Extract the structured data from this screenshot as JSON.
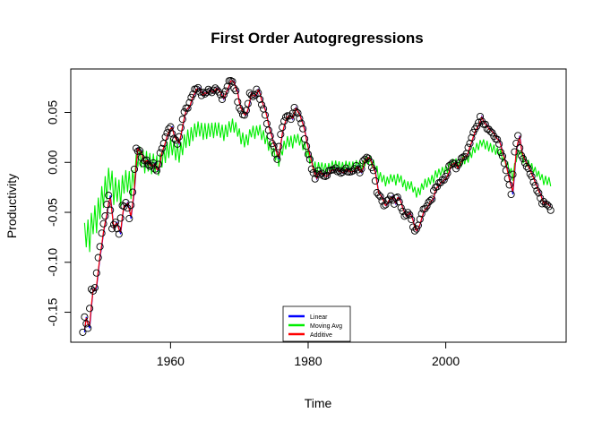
{
  "chart_data": {
    "type": "line",
    "title": "First Order Autogregressions",
    "xlabel": "Time",
    "ylabel": "Productivity",
    "xlim": [
      1945.5,
      2017.5
    ],
    "ylim": [
      -0.18,
      0.0935
    ],
    "x_ticks": [
      1960,
      1980,
      2000
    ],
    "y_ticks": [
      -0.15,
      -0.1,
      -0.05,
      0.0,
      0.05
    ],
    "y_tick_labels": [
      "-0.15",
      "-0.10",
      "-0.05",
      "0.00",
      "0.05"
    ],
    "grid": false,
    "legend_position": "bottom-center",
    "legend": [
      {
        "name": "Linear",
        "color": "#0000ff"
      },
      {
        "name": "Moving Avg",
        "color": "#00ee00"
      },
      {
        "name": "Additive",
        "color": "#ff0000"
      }
    ],
    "observed": {
      "marker": "open-circle",
      "start": 1947.25,
      "frequency": 4,
      "anchors": [
        [
          1947.25,
          -0.17
        ],
        [
          1947.5,
          -0.155
        ],
        [
          1948.0,
          -0.165
        ],
        [
          1948.5,
          -0.127
        ],
        [
          1949.0,
          -0.127
        ],
        [
          1949.5,
          -0.095
        ],
        [
          1950.0,
          -0.072
        ],
        [
          1950.5,
          -0.052
        ],
        [
          1951.0,
          -0.032
        ],
        [
          1951.5,
          -0.065
        ],
        [
          1952.0,
          -0.06
        ],
        [
          1952.5,
          -0.07
        ],
        [
          1953.0,
          -0.045
        ],
        [
          1953.5,
          -0.04
        ],
        [
          1954.0,
          -0.055
        ],
        [
          1954.5,
          -0.03
        ],
        [
          1955.0,
          0.015
        ],
        [
          1955.5,
          0.01
        ],
        [
          1956.0,
          0.0
        ],
        [
          1956.5,
          0.003
        ],
        [
          1957.0,
          -0.005
        ],
        [
          1957.5,
          0.0
        ],
        [
          1958.0,
          -0.01
        ],
        [
          1958.5,
          0.008
        ],
        [
          1959.0,
          0.02
        ],
        [
          1959.5,
          0.03
        ],
        [
          1960.0,
          0.035
        ],
        [
          1960.5,
          0.025
        ],
        [
          1961.0,
          0.02
        ],
        [
          1961.5,
          0.035
        ],
        [
          1962.0,
          0.05
        ],
        [
          1962.5,
          0.055
        ],
        [
          1963.0,
          0.065
        ],
        [
          1963.5,
          0.072
        ],
        [
          1964.0,
          0.075
        ],
        [
          1964.5,
          0.068
        ],
        [
          1965.0,
          0.07
        ],
        [
          1965.5,
          0.072
        ],
        [
          1966.0,
          0.068
        ],
        [
          1966.5,
          0.073
        ],
        [
          1967.0,
          0.07
        ],
        [
          1967.5,
          0.065
        ],
        [
          1968.0,
          0.072
        ],
        [
          1968.5,
          0.082
        ],
        [
          1969.0,
          0.08
        ],
        [
          1969.5,
          0.07
        ],
        [
          1970.0,
          0.055
        ],
        [
          1970.5,
          0.048
        ],
        [
          1971.0,
          0.05
        ],
        [
          1971.5,
          0.068
        ],
        [
          1972.0,
          0.066
        ],
        [
          1972.5,
          0.072
        ],
        [
          1973.0,
          0.064
        ],
        [
          1973.5,
          0.055
        ],
        [
          1974.0,
          0.038
        ],
        [
          1974.5,
          0.025
        ],
        [
          1975.0,
          0.015
        ],
        [
          1975.5,
          0.005
        ],
        [
          1976.0,
          0.03
        ],
        [
          1976.5,
          0.04
        ],
        [
          1977.0,
          0.048
        ],
        [
          1977.5,
          0.045
        ],
        [
          1978.0,
          0.055
        ],
        [
          1978.5,
          0.05
        ],
        [
          1979.0,
          0.04
        ],
        [
          1979.5,
          0.025
        ],
        [
          1980.0,
          0.01
        ],
        [
          1980.5,
          -0.005
        ],
        [
          1981.0,
          -0.015
        ],
        [
          1981.5,
          -0.008
        ],
        [
          1982.0,
          -0.012
        ],
        [
          1982.5,
          -0.015
        ],
        [
          1983.0,
          -0.01
        ],
        [
          1983.5,
          -0.008
        ],
        [
          1984.0,
          -0.005
        ],
        [
          1984.5,
          -0.01
        ],
        [
          1985.0,
          -0.008
        ],
        [
          1985.5,
          -0.005
        ],
        [
          1986.0,
          -0.01
        ],
        [
          1986.5,
          -0.008
        ],
        [
          1987.0,
          -0.005
        ],
        [
          1987.5,
          -0.01
        ],
        [
          1988.0,
          0.0
        ],
        [
          1988.5,
          0.005
        ],
        [
          1989.0,
          0.0
        ],
        [
          1989.5,
          -0.01
        ],
        [
          1990.0,
          -0.03
        ],
        [
          1990.5,
          -0.035
        ],
        [
          1991.0,
          -0.045
        ],
        [
          1991.5,
          -0.04
        ],
        [
          1992.0,
          -0.035
        ],
        [
          1992.5,
          -0.04
        ],
        [
          1993.0,
          -0.035
        ],
        [
          1993.5,
          -0.045
        ],
        [
          1994.0,
          -0.055
        ],
        [
          1994.5,
          -0.05
        ],
        [
          1995.0,
          -0.058
        ],
        [
          1995.5,
          -0.068
        ],
        [
          1996.0,
          -0.065
        ],
        [
          1996.5,
          -0.05
        ],
        [
          1997.0,
          -0.045
        ],
        [
          1997.5,
          -0.04
        ],
        [
          1998.0,
          -0.035
        ],
        [
          1998.5,
          -0.025
        ],
        [
          1999.0,
          -0.02
        ],
        [
          1999.5,
          -0.018
        ],
        [
          2000.0,
          -0.015
        ],
        [
          2000.5,
          -0.005
        ],
        [
          2001.0,
          0.0
        ],
        [
          2001.5,
          -0.005
        ],
        [
          2002.0,
          0.0
        ],
        [
          2002.5,
          0.005
        ],
        [
          2003.0,
          0.01
        ],
        [
          2003.5,
          0.02
        ],
        [
          2004.0,
          0.03
        ],
        [
          2004.5,
          0.038
        ],
        [
          2005.0,
          0.045
        ],
        [
          2005.5,
          0.038
        ],
        [
          2006.0,
          0.035
        ],
        [
          2006.5,
          0.032
        ],
        [
          2007.0,
          0.028
        ],
        [
          2007.5,
          0.022
        ],
        [
          2008.0,
          0.012
        ],
        [
          2008.5,
          0.0
        ],
        [
          2009.0,
          -0.015
        ],
        [
          2009.5,
          -0.032
        ],
        [
          2010.0,
          0.01
        ],
        [
          2010.5,
          0.025
        ],
        [
          2011.0,
          0.005
        ],
        [
          2011.5,
          0.0
        ],
        [
          2012.0,
          -0.005
        ],
        [
          2012.5,
          -0.015
        ],
        [
          2013.0,
          -0.025
        ],
        [
          2013.5,
          -0.03
        ],
        [
          2014.0,
          -0.04
        ],
        [
          2014.5,
          -0.042
        ],
        [
          2015.0,
          -0.045
        ],
        [
          2015.25,
          -0.047
        ]
      ]
    },
    "series": [
      {
        "name": "Linear",
        "color": "#0000ff",
        "fit": "lag-1 of observed"
      },
      {
        "name": "Moving Avg",
        "color": "#00ee00",
        "fit": "damped lag-1 of observed",
        "amplitude": 0.45,
        "oscillation": 0.012
      },
      {
        "name": "Additive",
        "color": "#ff0000",
        "fit": "lag-1 of observed"
      }
    ]
  }
}
